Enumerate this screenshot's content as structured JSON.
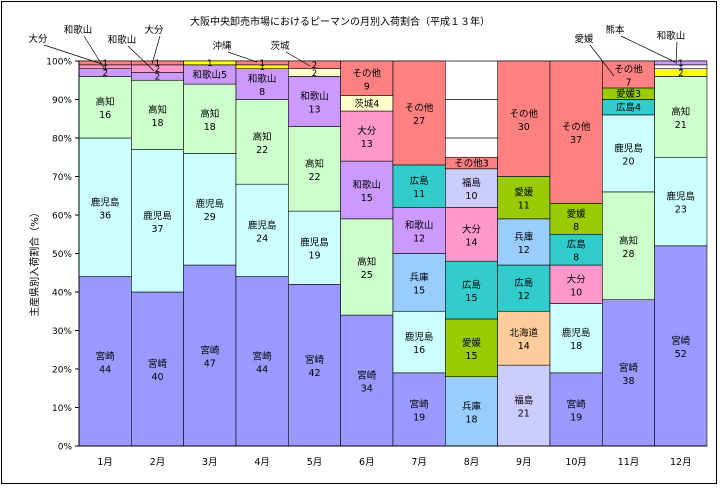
{
  "chart_data": {
    "type": "bar",
    "stacked": true,
    "title": "大阪中央卸売市場におけるピーマンの月別入荷割合（平成１３年）",
    "xlabel": "",
    "ylabel": "主産県別入荷割合（%）",
    "ylim": [
      0,
      100
    ],
    "yticks": [
      "0%",
      "10%",
      "20%",
      "30%",
      "40%",
      "50%",
      "60%",
      "70%",
      "80%",
      "90%",
      "100%"
    ],
    "categories": [
      "1月",
      "2月",
      "3月",
      "4月",
      "5月",
      "6月",
      "7月",
      "8月",
      "9月",
      "10月",
      "11月",
      "12月"
    ],
    "colors": {
      "宮崎": "#9999ff",
      "鹿児島": "#ccffff",
      "高知": "#ccffcc",
      "和歌山": "#cc99ff",
      "大分": "#ff99cc",
      "茨城": "#ffffcc",
      "広島": "#33cccc",
      "兵庫": "#99ccff",
      "愛媛": "#99cc00",
      "北海道": "#ffcc99",
      "福島": "#ccccff",
      "その他": "#ff8080",
      "沖縄": "#ffff00",
      "熊本": "#ffffff"
    },
    "bars": [
      {
        "segments": [
          [
            "宮崎",
            44
          ],
          [
            "鹿児島",
            36
          ],
          [
            "高知",
            16
          ],
          [
            "和歌山",
            2
          ],
          [
            "大分",
            1
          ],
          [
            "その他",
            1
          ]
        ]
      },
      {
        "segments": [
          [
            "宮崎",
            40
          ],
          [
            "鹿児島",
            37
          ],
          [
            "高知",
            18
          ],
          [
            "和歌山",
            2
          ],
          [
            "大分",
            2
          ],
          [
            "その他",
            1
          ]
        ]
      },
      {
        "segments": [
          [
            "宮崎",
            47
          ],
          [
            "鹿児島",
            29
          ],
          [
            "高知",
            18
          ],
          [
            "和歌山",
            5
          ],
          [
            "沖縄",
            1
          ],
          [
            "その他",
            0
          ]
        ]
      },
      {
        "segments": [
          [
            "宮崎",
            44
          ],
          [
            "鹿児島",
            24
          ],
          [
            "高知",
            22
          ],
          [
            "和歌山",
            8
          ],
          [
            "沖縄",
            1
          ],
          [
            "その他",
            1
          ]
        ]
      },
      {
        "segments": [
          [
            "宮崎",
            42
          ],
          [
            "鹿児島",
            19
          ],
          [
            "高知",
            22
          ],
          [
            "和歌山",
            13
          ],
          [
            "茨城",
            2
          ],
          [
            "その他",
            2
          ]
        ]
      },
      {
        "segments": [
          [
            "宮崎",
            34
          ],
          [
            "高知",
            25
          ],
          [
            "和歌山",
            15
          ],
          [
            "大分",
            13
          ],
          [
            "茨城",
            4
          ],
          [
            "その他",
            9
          ]
        ]
      },
      {
        "segments": [
          [
            "宮崎",
            19
          ],
          [
            "鹿児島",
            16
          ],
          [
            "兵庫",
            15
          ],
          [
            "和歌山",
            12
          ],
          [
            "広島",
            11
          ],
          [
            "その他",
            27
          ]
        ]
      },
      {
        "segments": [
          [
            "兵庫",
            18
          ],
          [
            "愛媛",
            15
          ],
          [
            "広島",
            15
          ],
          [
            "大分",
            14
          ],
          [
            "福島",
            10
          ],
          [
            "その他",
            3
          ]
        ]
      },
      {
        "segments": [
          [
            "福島",
            21
          ],
          [
            "北海道",
            14
          ],
          [
            "広島",
            12
          ],
          [
            "兵庫",
            12
          ],
          [
            "愛媛",
            11
          ],
          [
            "その他",
            30
          ]
        ]
      },
      {
        "segments": [
          [
            "宮崎",
            19
          ],
          [
            "鹿児島",
            18
          ],
          [
            "大分",
            10
          ],
          [
            "広島",
            8
          ],
          [
            "愛媛",
            8
          ],
          [
            "その他",
            37
          ]
        ]
      },
      {
        "segments": [
          [
            "宮崎",
            38
          ],
          [
            "高知",
            28
          ],
          [
            "鹿児島",
            20
          ],
          [
            "広島",
            4
          ],
          [
            "愛媛",
            3
          ],
          [
            "その他",
            7
          ]
        ]
      },
      {
        "segments": [
          [
            "宮崎",
            52
          ],
          [
            "鹿児島",
            23
          ],
          [
            "高知",
            21
          ],
          [
            "沖縄",
            2
          ],
          [
            "熊本",
            1
          ],
          [
            "和歌山",
            1
          ]
        ]
      }
    ],
    "callouts": [
      "大分",
      "和歌山",
      "和歌山",
      "大分",
      "沖縄",
      "茨城",
      "愛媛",
      "熊本",
      "和歌山"
    ]
  }
}
